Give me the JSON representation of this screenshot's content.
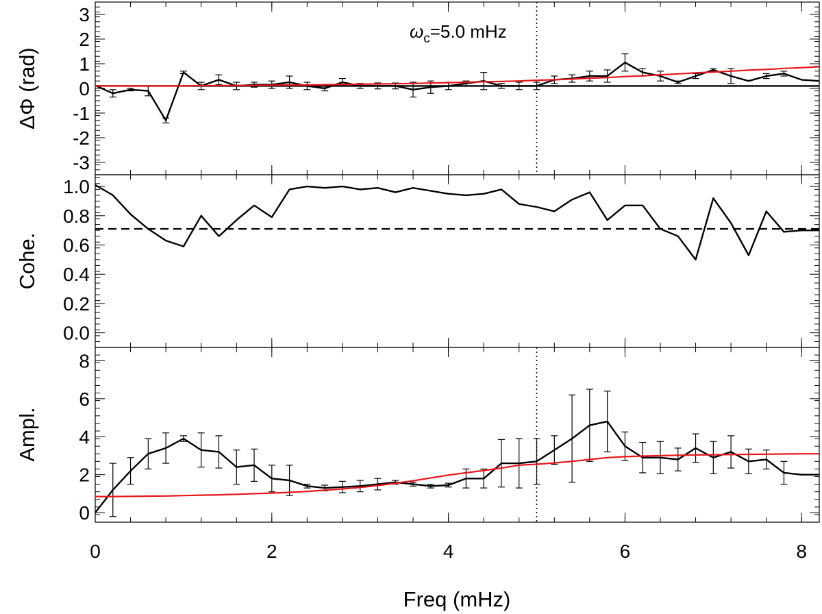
{
  "chart_data": [
    {
      "type": "line",
      "panel": "phase",
      "ylabel": "ΔΦ (rad)",
      "ylim": [
        -3.5,
        3.5
      ],
      "xlim": [
        0,
        8.2
      ],
      "yticks": [
        -3,
        -2,
        -1,
        0,
        1,
        2,
        3
      ],
      "ytick_labels": [
        "-3",
        "-2",
        "-1",
        "0",
        "1",
        "2",
        "3"
      ],
      "cutoff_label_prefix": "ω",
      "cutoff_label_sub": "c",
      "cutoff_label_suffix": "=5.0 mHz",
      "cutoff_x": 5.0,
      "zero_line": 0.1,
      "x": [
        0,
        0.2,
        0.4,
        0.6,
        0.8,
        1.0,
        1.2,
        1.4,
        1.6,
        1.8,
        2.0,
        2.2,
        2.4,
        2.6,
        2.8,
        3.0,
        3.2,
        3.4,
        3.6,
        3.8,
        4.0,
        4.2,
        4.4,
        4.6,
        4.8,
        5.0,
        5.2,
        5.4,
        5.6,
        5.8,
        6.0,
        6.2,
        6.4,
        6.6,
        6.8,
        7.0,
        7.2,
        7.4,
        7.6,
        7.8,
        8.0,
        8.2
      ],
      "series": [
        {
          "name": "measured",
          "values": [
            0.12,
            -0.2,
            -0.05,
            -0.1,
            -1.3,
            0.65,
            0.1,
            0.35,
            0.1,
            0.15,
            0.15,
            0.25,
            0.1,
            0.0,
            0.25,
            0.1,
            0.1,
            0.1,
            -0.05,
            0.05,
            0.1,
            0.2,
            0.3,
            0.1,
            0.1,
            0.1,
            0.35,
            0.4,
            0.5,
            0.5,
            1.05,
            0.65,
            0.5,
            0.25,
            0.5,
            0.75,
            0.5,
            0.3,
            0.5,
            0.6,
            0.35,
            0.3
          ],
          "errors": [
            0.0,
            0.15,
            0.05,
            0.2,
            0.1,
            0.05,
            0.15,
            0.2,
            0.15,
            0.1,
            0.15,
            0.25,
            0.15,
            0.1,
            0.15,
            0.1,
            0.12,
            0.12,
            0.3,
            0.25,
            0.15,
            0.1,
            0.35,
            0.1,
            0.15,
            0.15,
            0.15,
            0.15,
            0.2,
            0.25,
            0.35,
            0.15,
            0.2,
            0.05,
            0.1,
            0.05,
            0.3,
            0.0,
            0.1,
            0.1,
            0.0,
            0.0
          ]
        },
        {
          "name": "fit",
          "color": "#e8151b",
          "values": [
            0.1,
            0.1,
            0.1,
            0.1,
            0.1,
            0.1,
            0.11,
            0.11,
            0.12,
            0.12,
            0.13,
            0.14,
            0.14,
            0.15,
            0.16,
            0.17,
            0.18,
            0.19,
            0.2,
            0.22,
            0.23,
            0.25,
            0.27,
            0.28,
            0.3,
            0.33,
            0.35,
            0.38,
            0.41,
            0.44,
            0.48,
            0.51,
            0.55,
            0.59,
            0.63,
            0.66,
            0.7,
            0.74,
            0.77,
            0.81,
            0.84,
            0.88
          ]
        }
      ]
    },
    {
      "type": "line",
      "panel": "coherence",
      "ylabel": "Cohe.",
      "ylim": [
        -0.1,
        1.08
      ],
      "xlim": [
        0,
        8.2
      ],
      "yticks": [
        0.0,
        0.2,
        0.4,
        0.6,
        0.8,
        1.0
      ],
      "ytick_labels": [
        "0.0",
        "0.2",
        "0.4",
        "0.6",
        "0.8",
        "1.0"
      ],
      "threshold": 0.71,
      "x": [
        0,
        0.2,
        0.4,
        0.6,
        0.8,
        1.0,
        1.2,
        1.4,
        1.6,
        1.8,
        2.0,
        2.2,
        2.4,
        2.6,
        2.8,
        3.0,
        3.2,
        3.4,
        3.6,
        3.8,
        4.0,
        4.2,
        4.4,
        4.6,
        4.8,
        5.0,
        5.2,
        5.4,
        5.6,
        5.8,
        6.0,
        6.2,
        6.4,
        6.6,
        6.8,
        7.0,
        7.2,
        7.4,
        7.6,
        7.8,
        8.0,
        8.2
      ],
      "series": [
        {
          "name": "coherence",
          "values": [
            1.01,
            0.94,
            0.81,
            0.71,
            0.63,
            0.59,
            0.8,
            0.66,
            0.77,
            0.87,
            0.79,
            0.98,
            1.0,
            0.99,
            1.0,
            0.98,
            0.99,
            0.96,
            0.99,
            0.97,
            0.95,
            0.94,
            0.95,
            0.98,
            0.88,
            0.86,
            0.83,
            0.91,
            0.96,
            0.77,
            0.87,
            0.87,
            0.71,
            0.66,
            0.5,
            0.92,
            0.75,
            0.53,
            0.83,
            0.69,
            0.7,
            0.7
          ]
        }
      ]
    },
    {
      "type": "line",
      "panel": "amplitude",
      "ylabel": "Ampl.",
      "xlabel": "Freq (mHz)",
      "ylim": [
        -0.5,
        8.7
      ],
      "xlim": [
        0,
        8.2
      ],
      "yticks": [
        0,
        2,
        4,
        6,
        8
      ],
      "ytick_labels": [
        "0",
        "2",
        "4",
        "6",
        "8"
      ],
      "xticks": [
        0,
        2,
        4,
        6,
        8
      ],
      "xtick_labels": [
        "0",
        "2",
        "4",
        "6",
        "8"
      ],
      "cutoff_x": 5.0,
      "x": [
        0,
        0.2,
        0.4,
        0.6,
        0.8,
        1.0,
        1.2,
        1.4,
        1.6,
        1.8,
        2.0,
        2.2,
        2.4,
        2.6,
        2.8,
        3.0,
        3.2,
        3.4,
        3.6,
        3.8,
        4.0,
        4.2,
        4.4,
        4.6,
        4.8,
        5.0,
        5.2,
        5.4,
        5.6,
        5.8,
        6.0,
        6.2,
        6.4,
        6.6,
        6.8,
        7.0,
        7.2,
        7.4,
        7.6,
        7.8,
        8.0,
        8.2
      ],
      "series": [
        {
          "name": "measured",
          "values": [
            0.0,
            1.2,
            2.2,
            3.1,
            3.4,
            3.9,
            3.3,
            3.2,
            2.4,
            2.5,
            1.8,
            1.7,
            1.4,
            1.3,
            1.35,
            1.4,
            1.5,
            1.6,
            1.5,
            1.4,
            1.45,
            1.8,
            1.8,
            2.6,
            2.6,
            2.7,
            3.3,
            3.9,
            4.6,
            4.8,
            3.5,
            2.9,
            2.9,
            2.8,
            3.4,
            2.9,
            3.2,
            2.7,
            2.8,
            2.1,
            2.0,
            2.0
          ],
          "errors": [
            0.0,
            1.4,
            0.7,
            0.8,
            0.8,
            0.15,
            0.9,
            0.85,
            0.9,
            0.85,
            0.7,
            0.8,
            0.1,
            0.15,
            0.3,
            0.3,
            0.3,
            0.1,
            0.1,
            0.1,
            0.1,
            0.5,
            0.5,
            1.25,
            1.3,
            1.2,
            0.75,
            2.3,
            1.9,
            1.6,
            0.75,
            0.8,
            0.85,
            0.6,
            0.75,
            0.85,
            0.85,
            0.65,
            0.5,
            0.6,
            0.0,
            0.0
          ]
        },
        {
          "name": "fit",
          "color": "#e8151b",
          "values": [
            0.85,
            0.85,
            0.86,
            0.87,
            0.88,
            0.9,
            0.92,
            0.94,
            0.97,
            1.0,
            1.03,
            1.07,
            1.12,
            1.18,
            1.25,
            1.33,
            1.43,
            1.55,
            1.68,
            1.83,
            1.98,
            2.1,
            2.22,
            2.35,
            2.5,
            2.55,
            2.62,
            2.7,
            2.8,
            2.9,
            2.95,
            2.98,
            3.0,
            3.02,
            3.04,
            3.05,
            3.06,
            3.07,
            3.08,
            3.09,
            3.1,
            3.1
          ]
        }
      ]
    }
  ]
}
